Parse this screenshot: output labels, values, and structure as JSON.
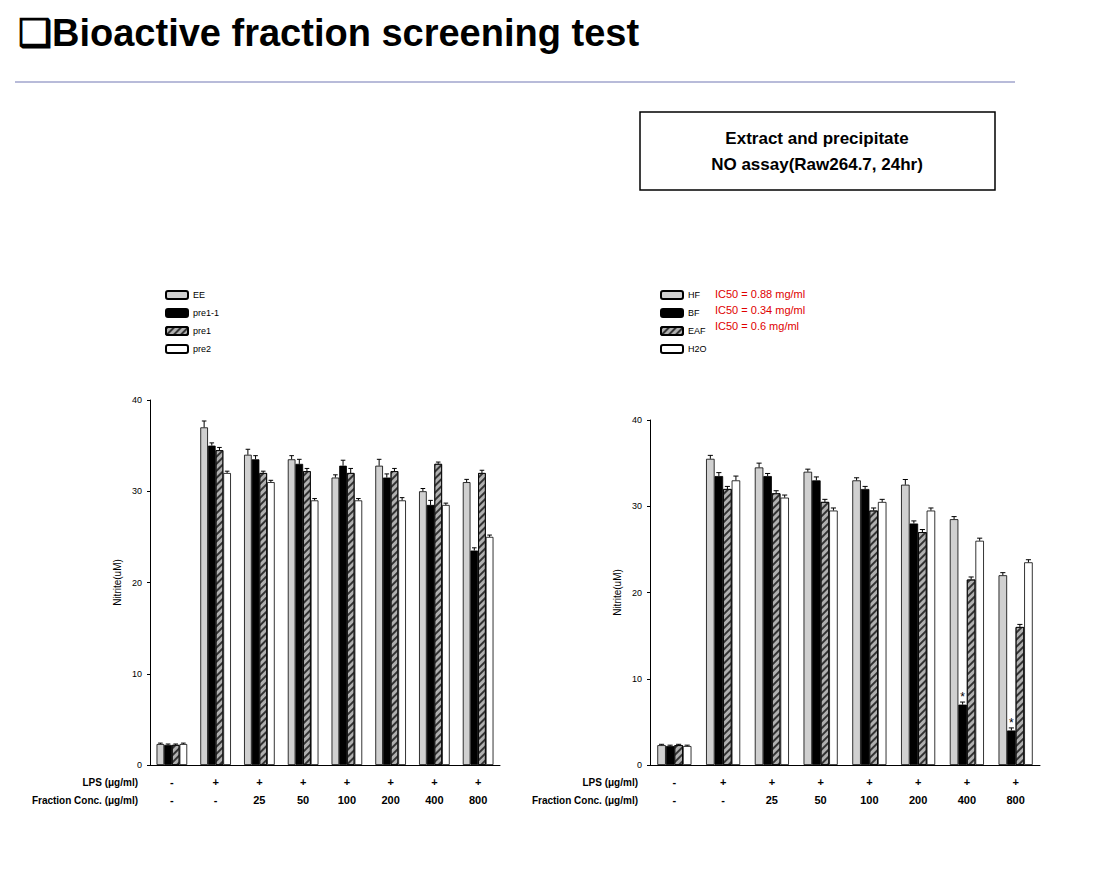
{
  "title": "❑Bioactive fraction screening test",
  "box_text": [
    "Extract and precipitate",
    "NO assay(Raw264.7, 24hr)"
  ],
  "chart_data": [
    {
      "type": "bar",
      "ylabel": "Nitrite(uM)",
      "row_labels": [
        "LPS (μg/ml)",
        "Fraction Conc. (μg/ml)"
      ],
      "lps": [
        "-",
        "+",
        "+",
        "+",
        "+",
        "+",
        "+",
        "+"
      ],
      "categories": [
        "-",
        "-",
        "25",
        "50",
        "100",
        "200",
        "400",
        "800"
      ],
      "ylim": [
        0,
        40
      ],
      "yticks": [
        0,
        10,
        20,
        30,
        40
      ],
      "grid": false,
      "series": [
        {
          "name": "EE",
          "color": "#d0d0d0",
          "values": [
            2.3,
            37,
            34,
            33.5,
            31.5,
            32.8,
            30,
            31
          ],
          "errors": [
            0.1,
            0.7,
            0.6,
            0.4,
            0.3,
            0.7,
            0.3,
            0.3
          ]
        },
        {
          "name": "pre1-1",
          "color": "#000000",
          "values": [
            2.2,
            35,
            33.5,
            33,
            32.8,
            31.5,
            28.5,
            23.5
          ],
          "errors": [
            0.1,
            0.3,
            0.4,
            0.5,
            0.6,
            0.4,
            0.5,
            0.3
          ]
        },
        {
          "name": "pre1",
          "color": "#b0b0b0",
          "values": [
            2.2,
            34.5,
            32,
            32.2,
            32,
            32.2,
            33,
            32
          ],
          "errors": [
            0.1,
            0.3,
            0.2,
            0.3,
            0.5,
            0.3,
            0.2,
            0.3
          ]
        },
        {
          "name": "pre2",
          "color": "#ffffff",
          "values": [
            2.3,
            32,
            31,
            29,
            29,
            29,
            28.5,
            25
          ],
          "errors": [
            0.1,
            0.2,
            0.2,
            0.2,
            0.2,
            0.3,
            0.2,
            0.2
          ]
        }
      ]
    },
    {
      "type": "bar",
      "ylabel": "Nitrite(uM)",
      "row_labels": [
        "LPS (μg/ml)",
        "Fraction Conc. (μg/ml)"
      ],
      "lps": [
        "-",
        "+",
        "+",
        "+",
        "+",
        "+",
        "+",
        "+"
      ],
      "categories": [
        "-",
        "-",
        "25",
        "50",
        "100",
        "200",
        "400",
        "800"
      ],
      "ylim": [
        0,
        40
      ],
      "yticks": [
        0,
        10,
        20,
        30,
        40
      ],
      "grid": false,
      "series": [
        {
          "name": "HF",
          "color": "#d0d0d0",
          "annotation": "IC50 = 0.88 mg/ml",
          "values": [
            2.3,
            35.5,
            34.5,
            34,
            33,
            32.5,
            28.5,
            22
          ],
          "errors": [
            0.1,
            0.4,
            0.5,
            0.3,
            0.3,
            0.6,
            0.3,
            0.3
          ]
        },
        {
          "name": "BF",
          "color": "#000000",
          "annotation": "IC50 = 0.34 mg/ml",
          "marks": [
            null,
            null,
            null,
            null,
            null,
            null,
            "*",
            "*"
          ],
          "values": [
            2.2,
            33.5,
            33.5,
            33,
            32,
            28,
            7,
            4
          ],
          "errors": [
            0.1,
            0.4,
            0.3,
            0.4,
            0.3,
            0.3,
            0.3,
            0.3
          ]
        },
        {
          "name": "EAF",
          "color": "#b0b0b0",
          "annotation": "IC50 = 0.6 mg/ml",
          "values": [
            2.3,
            32,
            31.5,
            30.5,
            29.5,
            27,
            21.5,
            16
          ],
          "errors": [
            0.1,
            0.3,
            0.3,
            0.3,
            0.3,
            0.3,
            0.3,
            0.3
          ]
        },
        {
          "name": "H2O",
          "color": "#ffffff",
          "values": [
            2.2,
            33,
            31,
            29.5,
            30.5,
            29.5,
            26,
            23.5
          ],
          "errors": [
            0.1,
            0.5,
            0.3,
            0.3,
            0.3,
            0.3,
            0.3,
            0.3
          ]
        }
      ]
    }
  ]
}
